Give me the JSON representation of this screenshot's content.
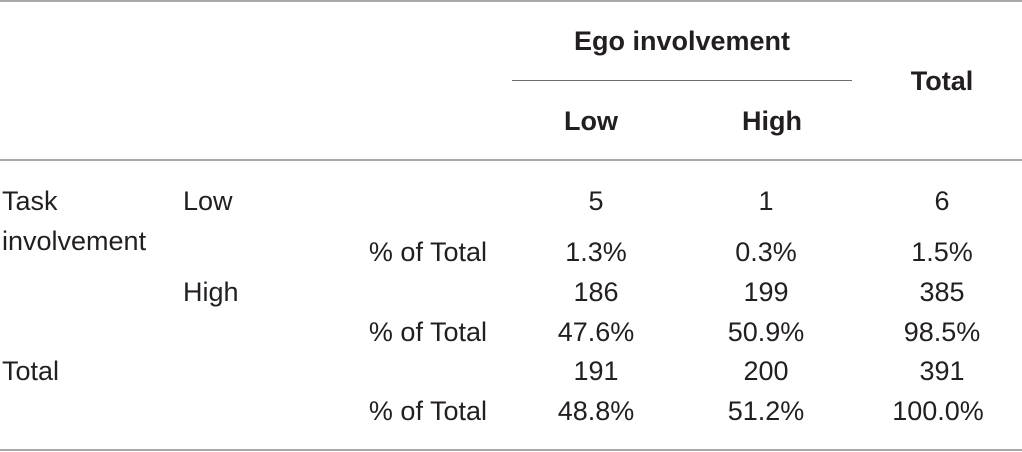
{
  "table": {
    "header": {
      "group_label": "Ego involvement",
      "col_low": "Low",
      "col_high": "High",
      "col_total": "Total"
    },
    "row_group": {
      "label_line1": "Task",
      "label_line2": "involvement"
    },
    "rows": [
      {
        "sublabel": "Low",
        "low": "5",
        "high": "1",
        "total": "6",
        "pct_label": "% of Total",
        "pct_low": "1.3%",
        "pct_high": "0.3%",
        "pct_total": "1.5%"
      },
      {
        "sublabel": "High",
        "low": "186",
        "high": "199",
        "total": "385",
        "pct_label": "% of Total",
        "pct_low": "47.6%",
        "pct_high": "50.9%",
        "pct_total": "98.5%"
      }
    ],
    "total_row": {
      "label": "Total",
      "low": "191",
      "high": "200",
      "total": "391",
      "pct_label": "% of Total",
      "pct_low": "48.8%",
      "pct_high": "51.2%",
      "pct_total": "100.0%"
    }
  }
}
